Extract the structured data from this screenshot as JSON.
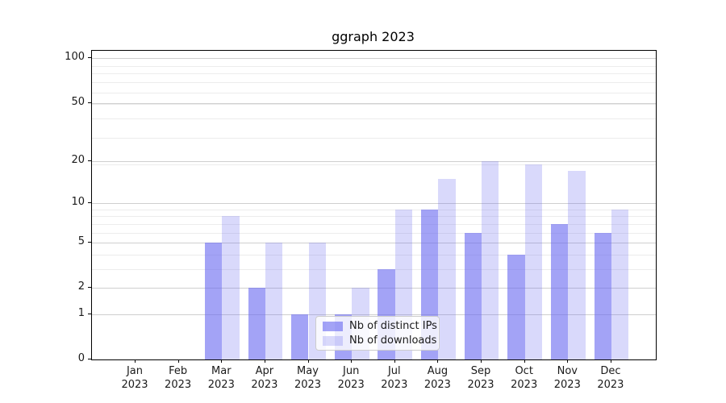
{
  "chart_data": {
    "type": "bar",
    "title": "ggraph 2023",
    "categories": [
      {
        "month": "Jan",
        "year": "2023"
      },
      {
        "month": "Feb",
        "year": "2023"
      },
      {
        "month": "Mar",
        "year": "2023"
      },
      {
        "month": "Apr",
        "year": "2023"
      },
      {
        "month": "May",
        "year": "2023"
      },
      {
        "month": "Jun",
        "year": "2023"
      },
      {
        "month": "Jul",
        "year": "2023"
      },
      {
        "month": "Aug",
        "year": "2023"
      },
      {
        "month": "Sep",
        "year": "2023"
      },
      {
        "month": "Oct",
        "year": "2023"
      },
      {
        "month": "Nov",
        "year": "2023"
      },
      {
        "month": "Dec",
        "year": "2023"
      }
    ],
    "series": [
      {
        "name": "Nb of distinct IPs",
        "values": [
          0,
          0,
          5,
          2,
          1,
          1,
          3,
          9,
          6,
          4,
          7,
          6
        ],
        "color": "rgba(102,102,240,0.6)"
      },
      {
        "name": "Nb of downloads",
        "values": [
          0,
          0,
          8,
          5,
          5,
          2,
          9,
          15,
          20,
          19,
          17,
          9
        ],
        "color": "rgba(102,102,240,0.25)"
      }
    ],
    "yscale": "log1p",
    "ytick_values": [
      0,
      1,
      2,
      5,
      10,
      20,
      50,
      100
    ],
    "minor_gridline_values": [
      3,
      4,
      6,
      7,
      8,
      9,
      19,
      29,
      39,
      49,
      59,
      69,
      79,
      89
    ],
    "ylim": [
      0,
      100
    ],
    "grid": true,
    "legend_position": "lower-center",
    "xlabel": "",
    "ylabel": ""
  },
  "colors": {
    "bar_base": "#6666f0",
    "major_grid": "#cfcfcf",
    "minor_grid": "#ececec",
    "spine": "#000000"
  },
  "legend": {
    "items": [
      {
        "label": "Nb of distinct IPs"
      },
      {
        "label": "Nb of downloads"
      }
    ]
  }
}
